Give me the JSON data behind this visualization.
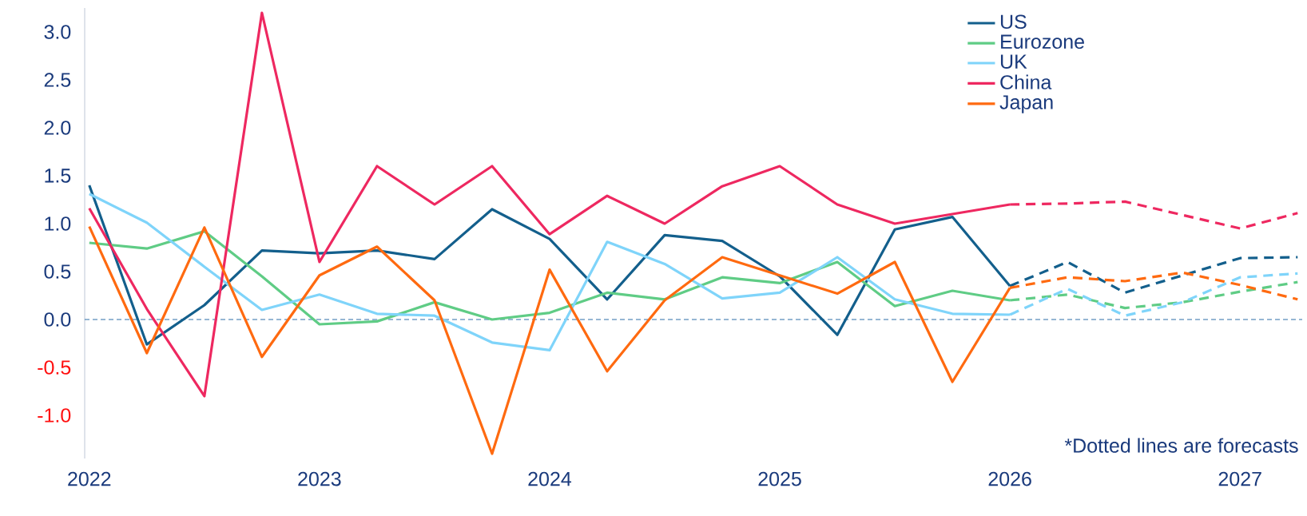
{
  "chart_data": {
    "type": "line",
    "x": [
      2022,
      2022.25,
      2022.5,
      2022.75,
      2023,
      2023.25,
      2023.5,
      2023.75,
      2024,
      2024.25,
      2024.5,
      2024.75,
      2025,
      2025.25,
      2025.5,
      2025.75,
      2026,
      2026.25,
      2026.5,
      2026.75,
      2027,
      2027.25
    ],
    "xlim": [
      2021.98,
      2027.27
    ],
    "xticks": [
      2022,
      2023,
      2024,
      2025,
      2026,
      2027
    ],
    "ylim": [
      -1.45,
      3.25
    ],
    "yticks": [
      {
        "value": -1,
        "label": "-1.0"
      },
      {
        "value": -0.5,
        "label": "-0.5"
      },
      {
        "value": 0,
        "label": "0.0"
      },
      {
        "value": 0.5,
        "label": "0.5"
      },
      {
        "value": 1,
        "label": "1.0"
      },
      {
        "value": 1.5,
        "label": "1.5"
      },
      {
        "value": 2,
        "label": "2.0"
      },
      {
        "value": 2.5,
        "label": "2.5"
      },
      {
        "value": 3,
        "label": "3.0"
      }
    ],
    "series": [
      {
        "name": "US",
        "color": "#135f8c",
        "line_style": "solid",
        "values": [
          1.4,
          -0.26,
          0.15,
          0.72,
          0.69,
          0.72,
          0.63,
          1.15,
          0.84,
          0.21,
          0.88,
          0.82,
          0.45,
          -0.16,
          0.94,
          1.07,
          0.35,
          null,
          null,
          null,
          null,
          null
        ]
      },
      {
        "name": "Eurozone",
        "color": "#5fcc85",
        "line_style": "solid",
        "values": [
          0.8,
          0.74,
          0.92,
          0.45,
          -0.05,
          -0.02,
          0.18,
          0.0,
          0.07,
          0.28,
          0.21,
          0.44,
          0.38,
          0.6,
          0.14,
          0.3,
          0.2,
          null,
          null,
          null,
          null,
          null
        ]
      },
      {
        "name": "UK",
        "color": "#7fd4fa",
        "line_style": "solid",
        "values": [
          1.31,
          1.01,
          0.55,
          0.1,
          0.26,
          0.06,
          0.04,
          -0.24,
          -0.32,
          0.81,
          0.58,
          0.22,
          0.28,
          0.65,
          0.21,
          0.06,
          0.05,
          null,
          null,
          null,
          null,
          null
        ]
      },
      {
        "name": "China",
        "color": "#ee2860",
        "line_style": "solid",
        "values": [
          1.16,
          0.11,
          -0.8,
          3.2,
          0.6,
          1.6,
          1.2,
          1.6,
          0.89,
          1.29,
          1.0,
          1.39,
          1.6,
          1.2,
          1.0,
          1.1,
          1.2,
          null,
          null,
          null,
          null,
          null
        ]
      },
      {
        "name": "Japan",
        "color": "#ff6a10",
        "line_style": "solid",
        "values": [
          0.97,
          -0.35,
          0.96,
          -0.39,
          0.46,
          0.76,
          0.2,
          -1.4,
          0.52,
          -0.54,
          0.2,
          0.65,
          0.46,
          0.27,
          0.6,
          -0.65,
          0.33,
          null,
          null,
          null,
          null,
          null
        ]
      },
      {
        "color": "#135f8c",
        "line_style": "dashed",
        "values": [
          null,
          null,
          null,
          null,
          null,
          null,
          null,
          null,
          null,
          null,
          null,
          null,
          null,
          null,
          null,
          null,
          0.35,
          0.6,
          0.28,
          0.46,
          0.64,
          0.65
        ]
      },
      {
        "color": "#5fcc85",
        "line_style": "dashed",
        "values": [
          null,
          null,
          null,
          null,
          null,
          null,
          null,
          null,
          null,
          null,
          null,
          null,
          null,
          null,
          null,
          null,
          0.2,
          0.26,
          0.12,
          0.18,
          0.29,
          0.39
        ]
      },
      {
        "color": "#7fd4fa",
        "line_style": "dashed",
        "values": [
          null,
          null,
          null,
          null,
          null,
          null,
          null,
          null,
          null,
          null,
          null,
          null,
          null,
          null,
          null,
          null,
          0.05,
          0.32,
          0.04,
          0.18,
          0.44,
          0.48
        ]
      },
      {
        "color": "#ee2860",
        "line_style": "dashed",
        "values": [
          null,
          null,
          null,
          null,
          null,
          null,
          null,
          null,
          null,
          null,
          null,
          null,
          null,
          null,
          null,
          null,
          1.2,
          1.21,
          1.23,
          1.09,
          0.95,
          1.11
        ]
      },
      {
        "color": "#ff6a10",
        "line_style": "dashed",
        "values": [
          null,
          null,
          null,
          null,
          null,
          null,
          null,
          null,
          null,
          null,
          null,
          null,
          null,
          null,
          null,
          null,
          0.33,
          0.44,
          0.4,
          0.49,
          0.36,
          0.21
        ]
      }
    ],
    "ref_lines": [
      {
        "axis": "y",
        "value": 0,
        "color": "#2e6fa8",
        "line_style": "dashed"
      }
    ],
    "annotations": [
      "*Dotted lines are forecasts"
    ],
    "legend": "top right",
    "grid": false
  }
}
